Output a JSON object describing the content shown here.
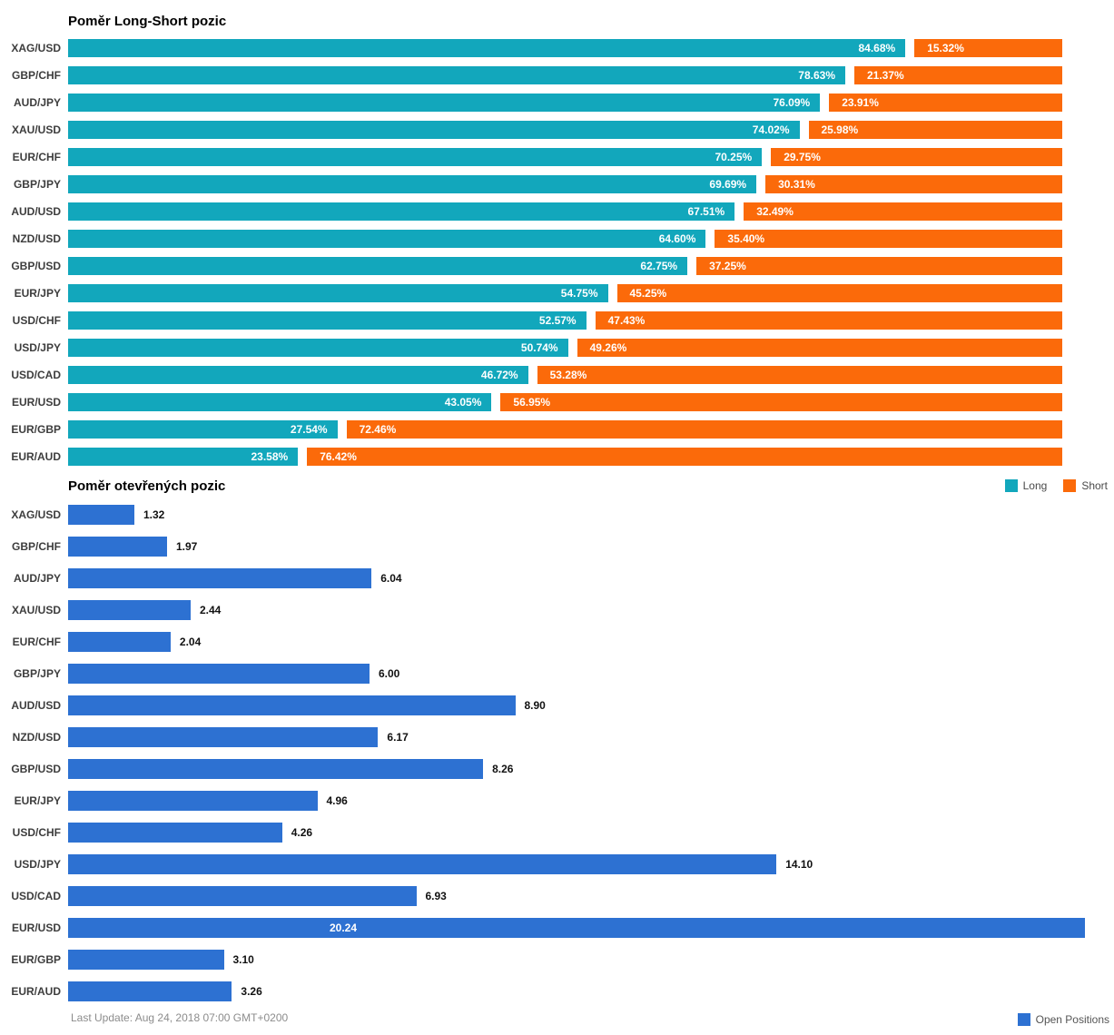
{
  "page": {
    "background": "#ffffff"
  },
  "footer": {
    "last_update": "Last Update: Aug 24, 2018 07:00 GMT+0200"
  },
  "chart_data": [
    {
      "type": "bar",
      "orientation": "horizontal",
      "stacked": true,
      "title": "Poměr Long-Short pozic",
      "value_suffix": "%",
      "xlim": [
        0,
        100
      ],
      "grid": false,
      "legend_position": "bottom-right",
      "categories": [
        "XAG/USD",
        "GBP/CHF",
        "AUD/JPY",
        "XAU/USD",
        "EUR/CHF",
        "GBP/JPY",
        "AUD/USD",
        "NZD/USD",
        "GBP/USD",
        "EUR/JPY",
        "USD/CHF",
        "USD/JPY",
        "USD/CAD",
        "EUR/USD",
        "EUR/GBP",
        "EUR/AUD"
      ],
      "series": [
        {
          "name": "Long",
          "color": "#12A7BC",
          "values": [
            84.68,
            78.63,
            76.09,
            74.02,
            70.25,
            69.69,
            67.51,
            64.6,
            62.75,
            54.75,
            52.57,
            50.74,
            46.72,
            43.05,
            27.54,
            23.58
          ]
        },
        {
          "name": "Short",
          "color": "#FB6A0A",
          "values": [
            15.32,
            21.37,
            23.91,
            25.98,
            29.75,
            30.31,
            32.49,
            35.4,
            37.25,
            45.25,
            47.43,
            49.26,
            53.28,
            56.95,
            72.46,
            76.42
          ]
        }
      ]
    },
    {
      "type": "bar",
      "orientation": "horizontal",
      "stacked": false,
      "title": "Poměr otevřených pozic",
      "value_suffix": "",
      "xlim": [
        0,
        20.24
      ],
      "grid": false,
      "legend_position": "bottom-right",
      "categories": [
        "XAG/USD",
        "GBP/CHF",
        "AUD/JPY",
        "XAU/USD",
        "EUR/CHF",
        "GBP/JPY",
        "AUD/USD",
        "NZD/USD",
        "GBP/USD",
        "EUR/JPY",
        "USD/CHF",
        "USD/JPY",
        "USD/CAD",
        "EUR/USD",
        "EUR/GBP",
        "EUR/AUD"
      ],
      "series": [
        {
          "name": "Open Positions",
          "color": "#2D71D2",
          "values": [
            1.32,
            1.97,
            6.04,
            2.44,
            2.04,
            6.0,
            8.9,
            6.17,
            8.26,
            4.96,
            4.26,
            14.1,
            6.93,
            20.24,
            3.1,
            3.26
          ]
        }
      ]
    }
  ]
}
